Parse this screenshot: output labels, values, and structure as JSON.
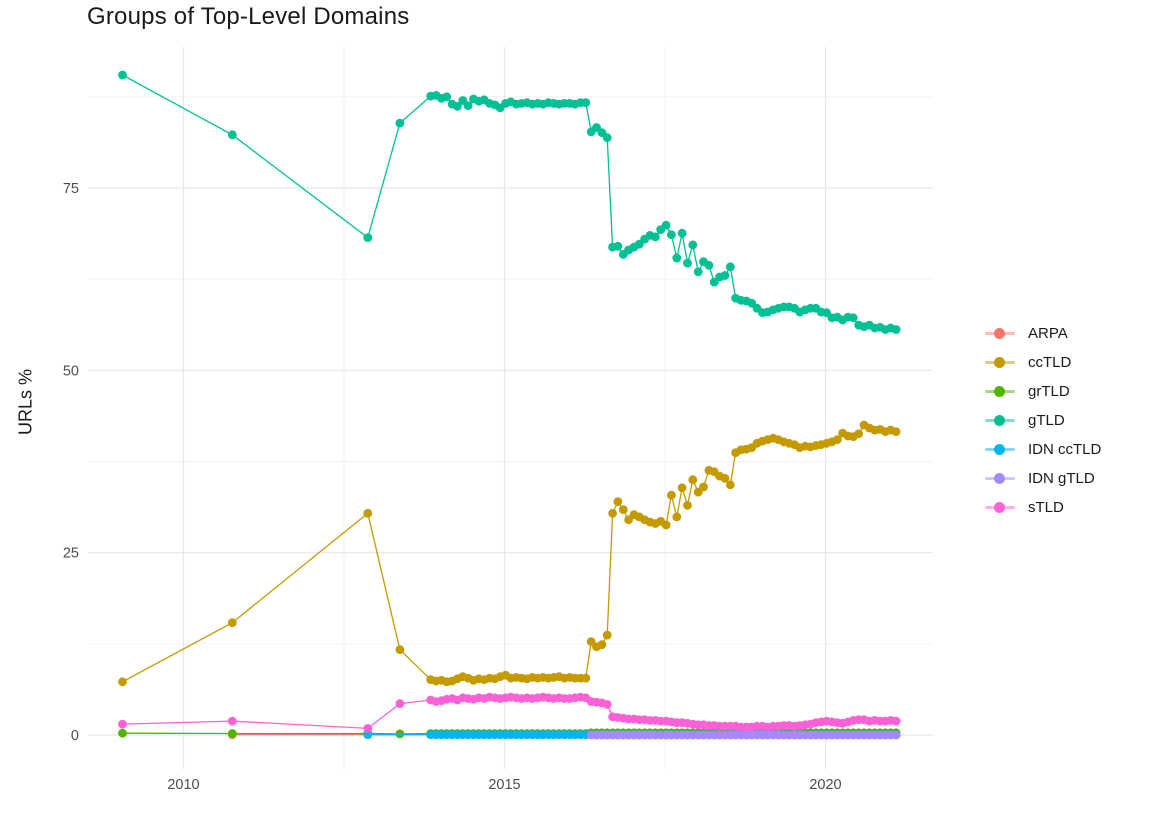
{
  "title": "Groups of Top-Level Domains",
  "chart_data": {
    "type": "line",
    "title": "Groups of Top-Level Domains",
    "xlabel": "",
    "ylabel": "URLs %",
    "x_ticks": [
      2010,
      2015,
      2020
    ],
    "x_minor_ticks": [
      2012.5,
      2017.5
    ],
    "y_ticks": [
      0,
      25,
      50,
      75
    ],
    "y_minor_ticks": [
      12.5,
      37.5,
      62.5,
      87.5
    ],
    "xlim": [
      2008.5,
      2021.7
    ],
    "ylim": [
      -4.5,
      94
    ],
    "grid": true,
    "marker": "point",
    "legend_position": "right",
    "series": [
      {
        "name": "ARPA",
        "color": "#F8766D",
        "points": [
          [
            2010.76,
            0.05
          ],
          [
            2012.87,
            0.05
          ]
        ],
        "segments": [
          {
            "start": 2013.85,
            "step": 0.08333,
            "const": 0.05,
            "count": 88
          }
        ]
      },
      {
        "name": "ccTLD",
        "color": "#C49A00",
        "points": [
          [
            2009.05,
            7.3
          ],
          [
            2010.76,
            15.4
          ],
          [
            2012.87,
            30.4
          ],
          [
            2013.37,
            11.7
          ]
        ],
        "segments": [
          {
            "start": 2013.85,
            "step": 0.08333,
            "values": [
              7.6,
              7.4,
              7.5,
              7.3,
              7.4,
              7.7,
              8.0,
              7.8,
              7.5,
              7.7,
              7.6,
              7.8,
              7.7,
              8.0,
              8.2,
              7.8,
              7.9,
              7.8,
              7.7,
              7.9,
              7.8,
              7.9,
              7.8,
              7.9,
              8.0,
              7.8,
              7.9,
              7.8,
              7.8,
              7.8,
              12.8,
              12.1,
              12.4,
              13.7,
              30.4,
              32.0,
              30.9,
              29.5,
              30.2,
              29.9,
              29.5,
              29.2,
              29.0,
              29.3,
              28.8,
              32.9,
              29.9,
              33.9,
              31.5,
              35.0,
              33.3,
              34.0,
              36.3,
              36.1,
              35.5,
              35.2,
              34.3,
              38.7,
              39.1,
              39.2,
              39.4,
              40.0,
              40.3,
              40.5,
              40.7,
              40.5,
              40.2,
              40.0,
              39.8,
              39.4,
              39.6,
              39.5,
              39.7,
              39.8,
              40.0,
              40.2,
              40.5,
              41.4,
              41.0,
              40.9,
              41.3,
              42.5,
              42.1,
              41.8,
              41.9,
              41.6,
              41.8,
              41.6
            ]
          }
        ]
      },
      {
        "name": "grTLD",
        "color": "#53B400",
        "points": [
          [
            2009.05,
            0.25
          ],
          [
            2010.76,
            0.2
          ],
          [
            2012.87,
            0.2
          ],
          [
            2013.37,
            0.15
          ]
        ],
        "segments": [
          {
            "start": 2013.85,
            "step": 0.08333,
            "const": 0.2,
            "count": 30
          },
          {
            "start": 2016.35,
            "step": 0.08333,
            "const": 0.3,
            "count": 58
          }
        ]
      },
      {
        "name": "gTLD",
        "color": "#00C094",
        "points": [
          [
            2009.05,
            90.5
          ],
          [
            2010.76,
            82.3
          ],
          [
            2012.87,
            68.2
          ],
          [
            2013.37,
            83.9
          ]
        ],
        "segments": [
          {
            "start": 2013.85,
            "step": 0.08333,
            "values": [
              87.6,
              87.7,
              87.3,
              87.5,
              86.5,
              86.2,
              87.0,
              86.3,
              87.2,
              86.9,
              87.1,
              86.6,
              86.4,
              86.0,
              86.6,
              86.8,
              86.5,
              86.6,
              86.7,
              86.5,
              86.6,
              86.5,
              86.7,
              86.6,
              86.5,
              86.6,
              86.6,
              86.5,
              86.7,
              86.7,
              82.7,
              83.3,
              82.6,
              81.9,
              66.9,
              67.0,
              65.9,
              66.5,
              66.9,
              67.3,
              68.0,
              68.5,
              68.3,
              69.3,
              69.9,
              68.6,
              65.4,
              68.8,
              64.7,
              67.2,
              63.5,
              64.9,
              64.4,
              62.1,
              62.8,
              63.0,
              64.2,
              59.9,
              59.6,
              59.5,
              59.2,
              58.5,
              57.9,
              58.0,
              58.3,
              58.5,
              58.7,
              58.7,
              58.5,
              58.0,
              58.3,
              58.5,
              58.5,
              58.0,
              57.9,
              57.2,
              57.3,
              56.9,
              57.3,
              57.2,
              56.2,
              56.0,
              56.2,
              55.8,
              55.9,
              55.6,
              55.8,
              55.6
            ]
          }
        ]
      },
      {
        "name": "IDN ccTLD",
        "color": "#00B6EB",
        "points": [
          [
            2012.87,
            0.05
          ]
        ],
        "segments": [
          {
            "start": 2013.85,
            "step": 0.08333,
            "const": 0.05,
            "count": 88
          }
        ]
      },
      {
        "name": "IDN gTLD",
        "color": "#A58AFF",
        "points": [],
        "segments": [
          {
            "start": 2016.35,
            "step": 0.08333,
            "const": 0.0,
            "count": 58
          }
        ]
      },
      {
        "name": "sTLD",
        "color": "#FB61D7",
        "points": [
          [
            2009.05,
            1.5
          ],
          [
            2010.76,
            1.9
          ],
          [
            2012.87,
            0.9
          ],
          [
            2013.37,
            4.3
          ]
        ],
        "segments": [
          {
            "start": 2013.85,
            "step": 0.08333,
            "values": [
              4.8,
              4.6,
              4.7,
              4.9,
              5.0,
              4.8,
              5.1,
              5.0,
              4.9,
              5.1,
              5.0,
              5.2,
              5.1,
              5.0,
              5.1,
              5.2,
              5.1,
              5.0,
              5.1,
              5.0,
              5.1,
              5.2,
              5.1,
              5.0,
              5.1,
              5.0,
              5.0,
              5.1,
              5.2,
              5.1,
              4.6,
              4.5,
              4.4,
              4.2,
              2.5,
              2.4,
              2.3,
              2.2,
              2.2,
              2.1,
              2.1,
              2.0,
              2.0,
              1.9,
              1.9,
              1.8,
              1.7,
              1.7,
              1.6,
              1.5,
              1.4,
              1.4,
              1.3,
              1.3,
              1.2,
              1.2,
              1.2,
              1.2,
              1.1,
              1.1,
              1.1,
              1.2,
              1.2,
              1.1,
              1.2,
              1.2,
              1.3,
              1.3,
              1.2,
              1.3,
              1.4,
              1.5,
              1.7,
              1.8,
              1.9,
              1.8,
              1.7,
              1.6,
              1.8,
              2.0,
              2.1,
              2.1,
              1.9,
              2.0,
              1.9,
              1.9,
              2.0,
              1.9
            ]
          }
        ]
      }
    ]
  }
}
